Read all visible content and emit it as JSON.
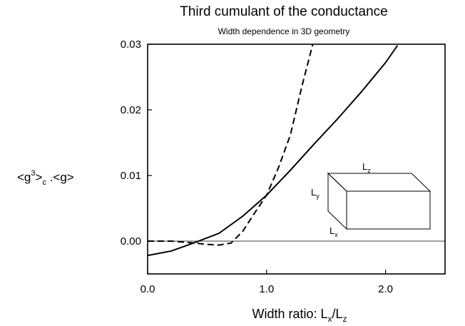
{
  "chart_data": {
    "type": "line",
    "title": "Third cumulant of the conductance",
    "subtitle": "Width dependence in 3D geometry",
    "xlabel": {
      "main": "Width ratio: L",
      "sub1": "x",
      "mid": "/L",
      "sub2": "z"
    },
    "ylabel": {
      "p1": "<g",
      "sup": "3",
      "p2": ">",
      "sub": "c",
      "p3": " .<g>"
    },
    "xlim": [
      0.0,
      2.5
    ],
    "ylim": [
      -0.005,
      0.03
    ],
    "xticks": [
      {
        "value": 0.0,
        "label": "0.0"
      },
      {
        "value": 1.0,
        "label": "1.0"
      },
      {
        "value": 2.0,
        "label": "2.0"
      }
    ],
    "yticks": [
      {
        "value": 0.0,
        "label": "0.00"
      },
      {
        "value": 0.01,
        "label": "0.01"
      },
      {
        "value": 0.02,
        "label": "0.02"
      },
      {
        "value": 0.03,
        "label": "0.03"
      }
    ],
    "grid": false,
    "reference_line_y": 0.0,
    "series": [
      {
        "style": "solid",
        "x": [
          0.0,
          0.2,
          0.4,
          0.6,
          0.8,
          1.0,
          1.2,
          1.4,
          1.6,
          1.8,
          2.0,
          2.1
        ],
        "y": [
          -0.0022,
          -0.0015,
          -0.0002,
          0.0012,
          0.0038,
          0.007,
          0.0108,
          0.0148,
          0.0187,
          0.0228,
          0.0272,
          0.0298
        ]
      },
      {
        "style": "dashed",
        "x": [
          0.0,
          0.2,
          0.4,
          0.5,
          0.6,
          0.7,
          0.8,
          0.9,
          1.0,
          1.1,
          1.2,
          1.3,
          1.4
        ],
        "y": [
          0.0,
          0.0,
          -0.0003,
          -0.0005,
          -0.0006,
          -0.0003,
          0.0015,
          0.0043,
          0.007,
          0.0112,
          0.0162,
          0.0238,
          0.0308
        ]
      }
    ],
    "inset": {
      "label_z": {
        "main": "L",
        "sub": "z"
      },
      "label_y": {
        "main": "L",
        "sub": "y"
      },
      "label_x": {
        "main": "L",
        "sub": "x"
      }
    }
  }
}
